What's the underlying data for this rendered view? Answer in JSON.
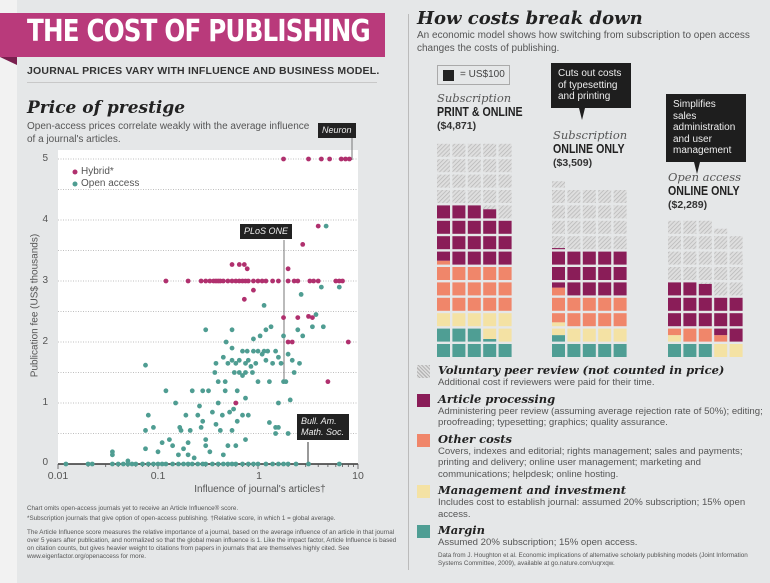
{
  "header": {
    "title": "THE COST OF PUBLISHING",
    "subtitle": "JOURNAL PRICES VARY WITH INFLUENCE AND BUSINESS MODEL."
  },
  "left": {
    "title": "Price of prestige",
    "description": "Open-access prices correlate weakly with the average influence of a journal's articles.",
    "notes": [
      "Chart omits open-access journals yet to receive an Article Influence® score.",
      "*Subscription journals that give option of open-access publishing. †Relative score, in which 1 = global average.",
      "The Article Influence score measures the relative importance of a journal, based on the average influence of an article in that journal over 5 years after publication, and normalized so that the global mean influence is 1. Like the impact factor, Article Influence is based on citation counts, but gives heavier weight to citations from papers in journals that are themselves highly cited. See www.eigenfactor.org/openaccess for more."
    ]
  },
  "right": {
    "title": "How costs break down",
    "description": "An economic model shows how switching from subscription to open access changes the costs of publishing.",
    "unit_label": "= US$100",
    "callouts": [
      "Cuts out costs of typesetting and printing",
      "Simplifies sales administration and user management"
    ],
    "legend": [
      {
        "title": "Voluntary peer review (not counted in price)",
        "text": "Additional cost if reviewers were paid for their time."
      },
      {
        "title": "Article processing",
        "text": "Administering peer review (assuming average rejection rate of 50%); editing; proofreading; typesetting; graphics; quality assurance."
      },
      {
        "title": "Other costs",
        "text": "Covers, indexes and editorial; rights management; sales and payments; printing and delivery; online user management; marketing and communications; helpdesk; online hosting."
      },
      {
        "title": "Management and investment",
        "text": "Includes cost to establish journal: assumed 20% subscription; 15% open access."
      },
      {
        "title": "Margin",
        "text": "Assumed 20% subscription; 15% open access."
      }
    ],
    "source": "Data from J. Houghton et al. Economic implications of alternative scholarly publishing models (Joint Information Systems Committee, 2009), available at go.nature.com/uqrxqw."
  },
  "colors": {
    "banner": "#b93a7b",
    "hybrid": "#b0306e",
    "open_access": "#4f9d92",
    "article_processing": "#8a1d58",
    "other_costs": "#f0866a",
    "management": "#f4e2a4",
    "margin": "#4f9e94",
    "peer_review": "#d6d6d6"
  },
  "chart_data": [
    {
      "type": "scatter",
      "title": "Price of prestige",
      "xlabel": "Influence of journal's articles†",
      "ylabel": "Publication fee (US$ thousands)",
      "xscale": "log",
      "xlim": [
        0.01,
        10
      ],
      "ylim": [
        0,
        5
      ],
      "xticks": [
        "0.01",
        "0.1",
        "1",
        "10"
      ],
      "yticks": [
        "0",
        "1",
        "2",
        "3",
        "4",
        "5"
      ],
      "grid": true,
      "legend": "top-left",
      "annotations": [
        {
          "label": "Neuron",
          "x": 8.2,
          "y": 5
        },
        {
          "label": "PLoS ONE",
          "x": 1.8,
          "y": 1.35
        },
        {
          "label": "Bull. Am. Math. Soc.",
          "x": 3.2,
          "y": 0
        }
      ],
      "series": [
        {
          "name": "Hybrid*",
          "points": [
            [
              1.8,
              5
            ],
            [
              3.2,
              5
            ],
            [
              4.3,
              5
            ],
            [
              5.2,
              5
            ],
            [
              6.8,
              5
            ],
            [
              7.5,
              5
            ],
            [
              8.2,
              5
            ],
            [
              0.12,
              3
            ],
            [
              0.2,
              3
            ],
            [
              0.27,
              3
            ],
            [
              0.3,
              3
            ],
            [
              0.33,
              3
            ],
            [
              0.36,
              3
            ],
            [
              0.38,
              3
            ],
            [
              0.4,
              3
            ],
            [
              0.42,
              3
            ],
            [
              0.45,
              3
            ],
            [
              0.5,
              3
            ],
            [
              0.55,
              3
            ],
            [
              0.6,
              3
            ],
            [
              0.65,
              3
            ],
            [
              0.7,
              3
            ],
            [
              0.75,
              3
            ],
            [
              0.8,
              3
            ],
            [
              0.9,
              3
            ],
            [
              1.0,
              3
            ],
            [
              1.1,
              3
            ],
            [
              1.2,
              3
            ],
            [
              1.4,
              3
            ],
            [
              1.6,
              3
            ],
            [
              2.0,
              3
            ],
            [
              2.3,
              3
            ],
            [
              2.5,
              3
            ],
            [
              3.3,
              3
            ],
            [
              3.6,
              3
            ],
            [
              4.0,
              3
            ],
            [
              6.0,
              3
            ],
            [
              6.5,
              3
            ],
            [
              7.0,
              3
            ],
            [
              0.55,
              3.27
            ],
            [
              0.65,
              3.27
            ],
            [
              0.73,
              3.27
            ],
            [
              0.78,
              3.2
            ],
            [
              2.0,
              3.2
            ],
            [
              2.8,
              3.6
            ],
            [
              4.0,
              3.9
            ],
            [
              0.73,
              2.7
            ],
            [
              0.9,
              2.85
            ],
            [
              1.8,
              2.4
            ],
            [
              2.5,
              2.4
            ],
            [
              3.2,
              2.42
            ],
            [
              3.5,
              2.4
            ],
            [
              2.0,
              2.0
            ],
            [
              2.2,
              2.0
            ],
            [
              8.0,
              2.0
            ],
            [
              5.0,
              1.35
            ],
            [
              0.6,
              1.0
            ]
          ]
        },
        {
          "name": "Open access",
          "points": [
            [
              0.012,
              0
            ],
            [
              0.02,
              0
            ],
            [
              0.022,
              0
            ],
            [
              0.035,
              0
            ],
            [
              0.04,
              0
            ],
            [
              0.045,
              0
            ],
            [
              0.05,
              0
            ],
            [
              0.055,
              0
            ],
            [
              0.06,
              0
            ],
            [
              0.07,
              0
            ],
            [
              0.08,
              0
            ],
            [
              0.09,
              0
            ],
            [
              0.1,
              0
            ],
            [
              0.11,
              0
            ],
            [
              0.12,
              0
            ],
            [
              0.14,
              0
            ],
            [
              0.16,
              0
            ],
            [
              0.18,
              0
            ],
            [
              0.2,
              0
            ],
            [
              0.22,
              0
            ],
            [
              0.25,
              0
            ],
            [
              0.28,
              0
            ],
            [
              0.3,
              0
            ],
            [
              0.35,
              0
            ],
            [
              0.4,
              0
            ],
            [
              0.45,
              0
            ],
            [
              0.5,
              0
            ],
            [
              0.55,
              0
            ],
            [
              0.6,
              0
            ],
            [
              0.7,
              0
            ],
            [
              0.8,
              0
            ],
            [
              0.9,
              0
            ],
            [
              1.0,
              0
            ],
            [
              1.2,
              0
            ],
            [
              1.4,
              0
            ],
            [
              1.6,
              0
            ],
            [
              1.8,
              0
            ],
            [
              2.0,
              0
            ],
            [
              2.4,
              0
            ],
            [
              3.2,
              0
            ],
            [
              6.5,
              0
            ],
            [
              0.035,
              0.2
            ],
            [
              0.035,
              0.15
            ],
            [
              0.05,
              0.05
            ],
            [
              0.075,
              0.55
            ],
            [
              0.08,
              0.8
            ],
            [
              0.075,
              0.25
            ],
            [
              0.09,
              0.6
            ],
            [
              0.1,
              0.2
            ],
            [
              0.11,
              0.35
            ],
            [
              0.12,
              1.2
            ],
            [
              0.13,
              0.4
            ],
            [
              0.14,
              0.3
            ],
            [
              0.15,
              1.0
            ],
            [
              0.16,
              0.15
            ],
            [
              0.165,
              0.6
            ],
            [
              0.17,
              0.55
            ],
            [
              0.18,
              0.25
            ],
            [
              0.19,
              0.8
            ],
            [
              0.2,
              0.15
            ],
            [
              0.2,
              0.35
            ],
            [
              0.21,
              0.55
            ],
            [
              0.22,
              1.2
            ],
            [
              0.23,
              0.1
            ],
            [
              0.25,
              0.8
            ],
            [
              0.26,
              0.95
            ],
            [
              0.27,
              0.6
            ],
            [
              0.28,
              1.2
            ],
            [
              0.28,
              0.7
            ],
            [
              0.3,
              0.4
            ],
            [
              0.3,
              0.3
            ],
            [
              0.32,
              1.2
            ],
            [
              0.33,
              0.2
            ],
            [
              0.35,
              0.85
            ],
            [
              0.38,
              0.65
            ],
            [
              0.4,
              1.0
            ],
            [
              0.42,
              0.55
            ],
            [
              0.44,
              0.8
            ],
            [
              0.45,
              0.15
            ],
            [
              0.47,
              1.2
            ],
            [
              0.5,
              0.3
            ],
            [
              0.52,
              0.85
            ],
            [
              0.55,
              0.55
            ],
            [
              0.57,
              0.9
            ],
            [
              0.6,
              0.3
            ],
            [
              0.62,
              0.7
            ],
            [
              0.7,
              0.8
            ],
            [
              0.75,
              0.4
            ],
            [
              0.8,
              0.8
            ],
            [
              1.3,
              0.68
            ],
            [
              1.5,
              0.6
            ],
            [
              1.6,
              0.6
            ],
            [
              1.5,
              0.5
            ],
            [
              2.0,
              0.5
            ],
            [
              2.1,
              1.05
            ],
            [
              1.6,
              1.0
            ],
            [
              0.75,
              1.08
            ],
            [
              0.075,
              1.62
            ],
            [
              0.3,
              2.2
            ],
            [
              0.37,
              1.5
            ],
            [
              0.38,
              1.65
            ],
            [
              0.4,
              1.35
            ],
            [
              0.45,
              1.75
            ],
            [
              0.47,
              1.35
            ],
            [
              0.48,
              2.0
            ],
            [
              0.5,
              1.65
            ],
            [
              0.55,
              1.7
            ],
            [
              0.55,
              1.9
            ],
            [
              0.58,
              1.5
            ],
            [
              0.6,
              1.65
            ],
            [
              0.62,
              1.2
            ],
            [
              0.65,
              1.5
            ],
            [
              0.65,
              1.7
            ],
            [
              0.7,
              1.45
            ],
            [
              0.7,
              1.85
            ],
            [
              0.75,
              1.5
            ],
            [
              0.75,
              1.65
            ],
            [
              0.78,
              1.85
            ],
            [
              0.8,
              1.7
            ],
            [
              0.85,
              1.6
            ],
            [
              0.9,
              1.85
            ],
            [
              0.9,
              2.05
            ],
            [
              0.95,
              1.65
            ],
            [
              1.0,
              1.85
            ],
            [
              1.0,
              1.35
            ],
            [
              1.05,
              2.1
            ],
            [
              1.1,
              1.8
            ],
            [
              1.15,
              1.85
            ],
            [
              1.2,
              1.7
            ],
            [
              1.25,
              1.85
            ],
            [
              1.3,
              1.35
            ],
            [
              1.35,
              2.25
            ],
            [
              1.4,
              1.65
            ],
            [
              1.5,
              1.85
            ],
            [
              1.6,
              1.75
            ],
            [
              1.7,
              1.65
            ],
            [
              1.8,
              1.35
            ],
            [
              1.8,
              2.1
            ],
            [
              1.9,
              1.35
            ],
            [
              2.0,
              1.8
            ],
            [
              2.2,
              1.7
            ],
            [
              2.3,
              1.5
            ],
            [
              2.5,
              2.2
            ],
            [
              2.6,
              1.65
            ],
            [
              2.8,
              2.1
            ],
            [
              3.5,
              2.25
            ],
            [
              3.8,
              2.45
            ],
            [
              4.5,
              2.25
            ],
            [
              0.55,
              2.2
            ],
            [
              1.2,
              2.2
            ],
            [
              0.88,
              1.5
            ],
            [
              1.15,
              2.6
            ],
            [
              2.7,
              2.78
            ],
            [
              4.3,
              2.9
            ],
            [
              6.5,
              2.9
            ],
            [
              4.8,
              3.9
            ]
          ]
        }
      ]
    },
    {
      "type": "waffle",
      "title": "How costs break down",
      "unit": "US$100 per square",
      "categories": [
        "Margin",
        "Management and investment",
        "Other costs",
        "Article processing",
        "Voluntary peer review (not counted in price)"
      ],
      "columns": [
        {
          "kind": "Subscription",
          "name": "PRINT & ONLINE",
          "total_label": "($4,871)",
          "values": [
            820,
            680,
            1530,
            1841,
            2129
          ]
        },
        {
          "kind": "Subscription",
          "name": "ONLINE ONLY",
          "total_label": "($3,509)",
          "values": [
            550,
            480,
            1030,
            1449,
            2040
          ]
        },
        {
          "kind": "Open access",
          "name": "ONLINE ONLY",
          "total_label": "($2,289)",
          "values": [
            300,
            250,
            300,
            1439,
            2050
          ]
        }
      ]
    }
  ]
}
